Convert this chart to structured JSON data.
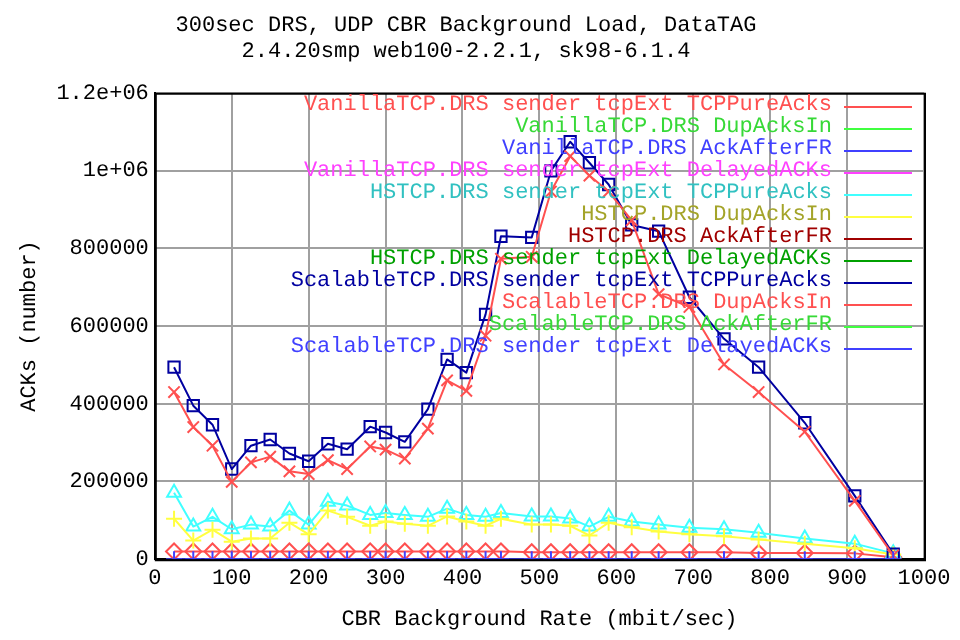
{
  "chart_data": {
    "type": "line",
    "title": "300sec DRS, UDP CBR Background Load, DataTAG",
    "subtitle": "2.4.20smp web100-2.2.1, sk98-6.1.4",
    "xlabel": "CBR Background Rate (mbit/sec)",
    "ylabel": "ACKs (number)",
    "x": [
      25,
      50,
      75,
      100,
      125,
      150,
      175,
      200,
      225,
      250,
      280,
      300,
      325,
      355,
      380,
      405,
      430,
      450,
      490,
      515,
      540,
      565,
      590,
      620,
      655,
      695,
      740,
      785,
      845,
      910,
      960
    ],
    "xlim": [
      0,
      1000
    ],
    "xticks": [
      0,
      100,
      200,
      300,
      400,
      500,
      600,
      700,
      800,
      900,
      1000
    ],
    "ylim": [
      0,
      1200000
    ],
    "yticks": [
      0,
      200000,
      400000,
      600000,
      800000,
      {
        "value": 1000000,
        "label": "1e+06"
      },
      {
        "value": 1200000,
        "label": "1.2e+06"
      }
    ],
    "grid": true,
    "legend": "top right",
    "series": [
      {
        "name": "VanillaTCP.DRS sender tcpExt TCPPureAcks",
        "color": "#ff5050",
        "marker": "diamond",
        "values": [
          20000,
          20000,
          20000,
          20000,
          20000,
          20000,
          20000,
          20000,
          20000,
          20000,
          20000,
          20000,
          20000,
          20000,
          20000,
          20000,
          20000,
          20000,
          18000,
          18000,
          18000,
          18000,
          18000,
          18000,
          18000,
          18000,
          18000,
          16000,
          16000,
          15000,
          5000
        ]
      },
      {
        "name": "VanillaTCP.DRS DupAcksIn",
        "color": "#40ff40",
        "marker": "cross",
        "values": [
          null,
          null,
          null,
          null,
          null,
          null,
          null,
          null,
          null,
          null,
          null,
          null,
          null,
          null,
          null,
          null,
          null,
          null,
          null,
          null,
          null,
          null,
          null,
          null,
          null,
          null,
          null,
          null,
          null,
          null,
          null
        ]
      },
      {
        "name": "VanillaTCP.DRS AckAfterFR",
        "color": "#4040ff",
        "marker": "square",
        "values": [
          null,
          null,
          null,
          null,
          null,
          null,
          null,
          null,
          null,
          null,
          null,
          null,
          null,
          null,
          null,
          null,
          null,
          null,
          null,
          null,
          null,
          null,
          null,
          null,
          null,
          null,
          null,
          null,
          null,
          null,
          null
        ]
      },
      {
        "name": "VanillaTCP.DRS sender tcpExt DelayedACKs",
        "color": "#ff40ff",
        "marker": "x",
        "values": [
          null,
          null,
          null,
          null,
          null,
          null,
          null,
          null,
          null,
          null,
          null,
          null,
          null,
          null,
          null,
          null,
          null,
          null,
          null,
          null,
          null,
          null,
          null,
          null,
          null,
          null,
          null,
          null,
          null,
          null,
          null
        ]
      },
      {
        "name": "HSTCP.DRS sender tcpExt TCPPureAcks",
        "color": "#40ffff",
        "marker": "triangle",
        "values": [
          171000,
          84000,
          109000,
          77000,
          89000,
          84000,
          125000,
          89000,
          148000,
          138000,
          114000,
          119000,
          114000,
          109000,
          130000,
          114000,
          109000,
          119000,
          110000,
          110000,
          105000,
          84000,
          109000,
          97000,
          89000,
          81000,
          77000,
          68000,
          53000,
          40000,
          15000
        ]
      },
      {
        "name": "HSTCP.DRS DupAcksIn",
        "color": "#ffff40",
        "marker": "cross",
        "values": [
          104000,
          48000,
          76000,
          45000,
          53000,
          53000,
          94000,
          64000,
          125000,
          109000,
          86000,
          97000,
          91000,
          86000,
          110000,
          97000,
          86000,
          104000,
          89000,
          89000,
          86000,
          61000,
          94000,
          82000,
          71000,
          64000,
          59000,
          51000,
          40000,
          28000,
          12000
        ]
      },
      {
        "name": "HSTCP.DRS AckAfterFR",
        "color": "#a00000",
        "marker": "diamond",
        "values": [
          null,
          null,
          null,
          null,
          null,
          null,
          null,
          null,
          null,
          null,
          null,
          null,
          null,
          null,
          null,
          null,
          null,
          null,
          null,
          null,
          null,
          null,
          null,
          null,
          null,
          null,
          null,
          null,
          null,
          null,
          null
        ]
      },
      {
        "name": "HSTCP.DRS sender tcpExt DelayedACKs",
        "color": "#00a000",
        "marker": "cross",
        "values": [
          null,
          null,
          null,
          null,
          null,
          null,
          null,
          null,
          null,
          null,
          null,
          null,
          null,
          null,
          null,
          null,
          null,
          null,
          null,
          null,
          null,
          null,
          null,
          null,
          null,
          null,
          null,
          null,
          null,
          null,
          null
        ]
      },
      {
        "name": "ScalableTCP.DRS sender tcpExt TCPPureAcks",
        "color": "#0000a0",
        "marker": "square",
        "values": [
          494000,
          395000,
          346000,
          232000,
          292000,
          308000,
          272000,
          252000,
          297000,
          283000,
          341000,
          326000,
          302000,
          386000,
          514000,
          480000,
          630000,
          831000,
          828000,
          999000,
          1074000,
          1020000,
          964000,
          860000,
          844000,
          674000,
          567000,
          494000,
          351000,
          163000,
          13000
        ]
      },
      {
        "name": "ScalableTCP.DRS DupAcksIn",
        "color": "#ff5050",
        "marker": "x",
        "values": [
          430000,
          340000,
          292000,
          199000,
          249000,
          264000,
          226000,
          219000,
          255000,
          232000,
          290000,
          282000,
          259000,
          336000,
          460000,
          433000,
          575000,
          773000,
          778000,
          946000,
          1037000,
          987000,
          946000,
          872000,
          682000,
          649000,
          501000,
          430000,
          328000,
          150000,
          10000
        ]
      },
      {
        "name": "ScalableTCP.DRS AckAfterFR",
        "color": "#40ff40",
        "marker": "triangle",
        "values": [
          null,
          null,
          null,
          null,
          null,
          null,
          null,
          null,
          null,
          null,
          null,
          null,
          null,
          null,
          null,
          null,
          null,
          null,
          null,
          null,
          null,
          null,
          null,
          null,
          null,
          null,
          null,
          null,
          null,
          null,
          null
        ]
      },
      {
        "name": "ScalableTCP.DRS sender tcpExt DelayedACKs",
        "color": "#4040ff",
        "marker": "cross",
        "values": [
          0,
          0,
          0,
          0,
          0,
          0,
          0,
          0,
          0,
          0,
          0,
          0,
          0,
          0,
          0,
          0,
          0,
          0,
          0,
          0,
          0,
          0,
          0,
          0,
          0,
          0,
          0,
          0,
          0,
          0,
          0
        ]
      }
    ]
  }
}
